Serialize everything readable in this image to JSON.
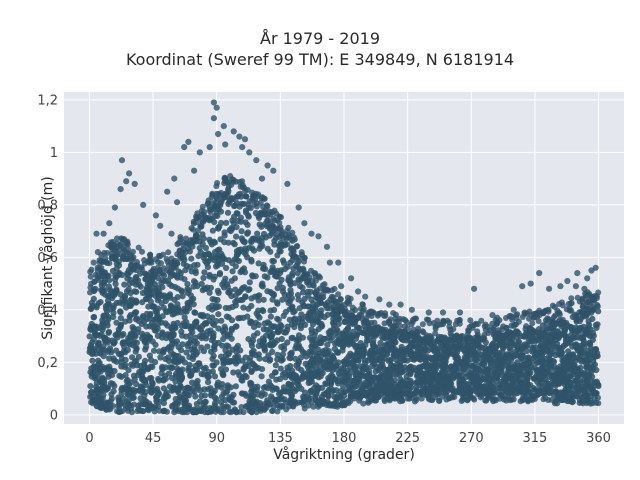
{
  "chart_data": {
    "type": "scatter",
    "title": "År 1979 - 2019",
    "subtitle": "Koordinat (Sweref 99 TM): E 349849, N 6181914",
    "xlabel": "Vågriktning (grader)",
    "ylabel": "Signifikant våghöjd (m)",
    "xlim": [
      -18,
      378
    ],
    "ylim": [
      -0.035,
      1.23
    ],
    "xticks": [
      0,
      45,
      90,
      135,
      180,
      225,
      270,
      315,
      360
    ],
    "xtick_labels": [
      "0",
      "45",
      "90",
      "135",
      "180",
      "225",
      "270",
      "315",
      "360"
    ],
    "yticks": [
      0,
      0.2,
      0.4,
      0.6,
      0.8,
      1.0,
      1.2
    ],
    "ytick_labels": [
      "0",
      "0,2",
      "0,4",
      "0,6",
      "0,8",
      "1",
      "1,2"
    ],
    "grid": true,
    "marker_color": "#2f5369",
    "background_color": "#e5e7ef",
    "envelope": {
      "x": [
        0,
        5,
        10,
        15,
        20,
        25,
        30,
        35,
        40,
        45,
        50,
        55,
        60,
        65,
        70,
        75,
        80,
        85,
        90,
        95,
        100,
        105,
        110,
        115,
        120,
        125,
        130,
        135,
        140,
        145,
        150,
        155,
        160,
        165,
        170,
        175,
        180,
        185,
        190,
        195,
        200,
        210,
        220,
        230,
        240,
        250,
        260,
        270,
        280,
        290,
        300,
        310,
        320,
        330,
        340,
        350,
        360
      ],
      "y_low": [
        0.07,
        0.06,
        0.05,
        0.04,
        0.04,
        0.04,
        0.04,
        0.04,
        0.04,
        0.04,
        0.04,
        0.04,
        0.04,
        0.03,
        0.03,
        0.03,
        0.03,
        0.03,
        0.03,
        0.03,
        0.03,
        0.03,
        0.03,
        0.03,
        0.03,
        0.04,
        0.04,
        0.04,
        0.04,
        0.05,
        0.05,
        0.05,
        0.06,
        0.06,
        0.06,
        0.06,
        0.06,
        0.07,
        0.07,
        0.07,
        0.08,
        0.08,
        0.08,
        0.08,
        0.08,
        0.08,
        0.08,
        0.08,
        0.08,
        0.08,
        0.08,
        0.08,
        0.08,
        0.07,
        0.07,
        0.07,
        0.07
      ],
      "y_high": [
        0.48,
        0.52,
        0.56,
        0.6,
        0.62,
        0.62,
        0.6,
        0.58,
        0.56,
        0.55,
        0.55,
        0.56,
        0.58,
        0.62,
        0.66,
        0.7,
        0.74,
        0.78,
        0.82,
        0.84,
        0.85,
        0.84,
        0.82,
        0.8,
        0.78,
        0.76,
        0.73,
        0.7,
        0.66,
        0.62,
        0.56,
        0.52,
        0.48,
        0.45,
        0.43,
        0.41,
        0.4,
        0.38,
        0.37,
        0.36,
        0.34,
        0.33,
        0.32,
        0.31,
        0.3,
        0.3,
        0.3,
        0.3,
        0.3,
        0.31,
        0.32,
        0.33,
        0.34,
        0.36,
        0.38,
        0.4,
        0.42
      ]
    },
    "outliers": [
      {
        "x": 88,
        "y": 1.19
      },
      {
        "x": 90,
        "y": 1.17
      },
      {
        "x": 88,
        "y": 1.13
      },
      {
        "x": 95,
        "y": 1.1
      },
      {
        "x": 91,
        "y": 1.07
      },
      {
        "x": 102,
        "y": 1.08
      },
      {
        "x": 106,
        "y": 1.06
      },
      {
        "x": 110,
        "y": 1.05
      },
      {
        "x": 96,
        "y": 1.03
      },
      {
        "x": 108,
        "y": 1.02
      },
      {
        "x": 70,
        "y": 1.04
      },
      {
        "x": 78,
        "y": 1.0
      },
      {
        "x": 67,
        "y": 1.02
      },
      {
        "x": 113,
        "y": 1.0
      },
      {
        "x": 85,
        "y": 1.02
      },
      {
        "x": 23,
        "y": 0.97
      },
      {
        "x": 28,
        "y": 0.92
      },
      {
        "x": 32,
        "y": 0.88
      },
      {
        "x": 26,
        "y": 0.89
      },
      {
        "x": 22,
        "y": 0.86
      },
      {
        "x": 130,
        "y": 0.93
      },
      {
        "x": 122,
        "y": 0.9
      },
      {
        "x": 140,
        "y": 0.88
      },
      {
        "x": 126,
        "y": 0.95
      },
      {
        "x": 118,
        "y": 0.97
      },
      {
        "x": 5,
        "y": 0.69
      },
      {
        "x": 10,
        "y": 0.69
      },
      {
        "x": 18,
        "y": 0.79
      },
      {
        "x": 14,
        "y": 0.73
      },
      {
        "x": 38,
        "y": 0.8
      },
      {
        "x": 47,
        "y": 0.76
      },
      {
        "x": 55,
        "y": 0.85
      },
      {
        "x": 60,
        "y": 0.9
      },
      {
        "x": 74,
        "y": 0.93
      },
      {
        "x": 62,
        "y": 0.81
      },
      {
        "x": 6,
        "y": 0.62
      },
      {
        "x": 3,
        "y": 0.58
      },
      {
        "x": 50,
        "y": 0.72
      },
      {
        "x": 58,
        "y": 0.69
      },
      {
        "x": 148,
        "y": 0.79
      },
      {
        "x": 152,
        "y": 0.73
      },
      {
        "x": 157,
        "y": 0.69
      },
      {
        "x": 162,
        "y": 0.68
      },
      {
        "x": 168,
        "y": 0.64
      },
      {
        "x": 170,
        "y": 0.58
      },
      {
        "x": 176,
        "y": 0.58
      },
      {
        "x": 185,
        "y": 0.52
      },
      {
        "x": 178,
        "y": 0.49
      },
      {
        "x": 190,
        "y": 0.47
      },
      {
        "x": 195,
        "y": 0.45
      },
      {
        "x": 205,
        "y": 0.44
      },
      {
        "x": 212,
        "y": 0.42
      },
      {
        "x": 220,
        "y": 0.42
      },
      {
        "x": 228,
        "y": 0.4
      },
      {
        "x": 240,
        "y": 0.39
      },
      {
        "x": 250,
        "y": 0.39
      },
      {
        "x": 262,
        "y": 0.39
      },
      {
        "x": 272,
        "y": 0.48
      },
      {
        "x": 285,
        "y": 0.38
      },
      {
        "x": 300,
        "y": 0.4
      },
      {
        "x": 306,
        "y": 0.49
      },
      {
        "x": 312,
        "y": 0.5
      },
      {
        "x": 318,
        "y": 0.54
      },
      {
        "x": 325,
        "y": 0.48
      },
      {
        "x": 333,
        "y": 0.49
      },
      {
        "x": 338,
        "y": 0.51
      },
      {
        "x": 345,
        "y": 0.54
      },
      {
        "x": 350,
        "y": 0.48
      },
      {
        "x": 355,
        "y": 0.55
      },
      {
        "x": 358,
        "y": 0.56
      },
      {
        "x": 352,
        "y": 0.52
      },
      {
        "x": 344,
        "y": 0.49
      },
      {
        "x": 60,
        "y": 0.01
      },
      {
        "x": 12,
        "y": 0.02
      },
      {
        "x": 30,
        "y": 0.01
      },
      {
        "x": 100,
        "y": 0.01
      },
      {
        "x": 75,
        "y": 0.02
      }
    ]
  }
}
